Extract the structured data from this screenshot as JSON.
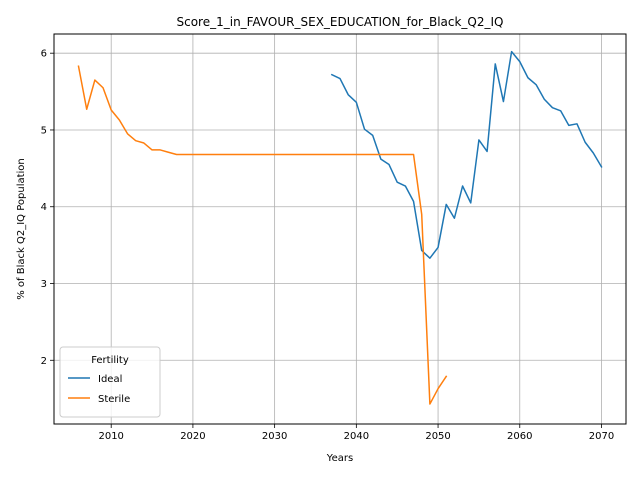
{
  "chart_data": {
    "type": "line",
    "title": "Score_1_in_FAVOUR_SEX_EDUCATION_for_Black_Q2_IQ",
    "xlabel": "Years",
    "ylabel": "% of Black Q2_IQ Population",
    "xlim": [
      2003,
      2073
    ],
    "ylim": [
      1.17,
      6.25
    ],
    "xticks": [
      2010,
      2020,
      2030,
      2040,
      2050,
      2060,
      2070
    ],
    "yticks": [
      2,
      3,
      4,
      5,
      6
    ],
    "grid": true,
    "legend": {
      "title": "Fertility",
      "placement": "lower-left"
    },
    "series": [
      {
        "name": "Ideal",
        "color": "#1f77b4",
        "x": [
          2037,
          2038,
          2039,
          2040,
          2041,
          2042,
          2043,
          2044,
          2045,
          2046,
          2047,
          2048,
          2049,
          2050,
          2051,
          2052,
          2053,
          2054,
          2055,
          2056,
          2057,
          2058,
          2059,
          2060,
          2061,
          2062,
          2063,
          2064,
          2065,
          2066,
          2067,
          2068,
          2069,
          2070
        ],
        "y": [
          5.72,
          5.67,
          5.46,
          5.36,
          5.01,
          4.93,
          4.62,
          4.55,
          4.32,
          4.27,
          4.07,
          3.43,
          3.33,
          3.47,
          4.03,
          3.85,
          4.27,
          4.05,
          4.87,
          4.72,
          5.86,
          5.37,
          6.02,
          5.89,
          5.68,
          5.59,
          5.4,
          5.29,
          5.25,
          5.06,
          5.08,
          4.84,
          4.7,
          4.52
        ]
      },
      {
        "name": "Sterile",
        "color": "#ff7f0e",
        "x": [
          2006,
          2007,
          2008,
          2009,
          2010,
          2011,
          2012,
          2013,
          2014,
          2015,
          2016,
          2017,
          2018,
          2019,
          2020,
          2025,
          2030,
          2035,
          2040,
          2045,
          2046,
          2047,
          2048,
          2049,
          2050,
          2051
        ],
        "y": [
          5.83,
          5.27,
          5.65,
          5.55,
          5.26,
          5.13,
          4.95,
          4.86,
          4.83,
          4.74,
          4.74,
          4.71,
          4.68,
          4.68,
          4.68,
          4.68,
          4.68,
          4.68,
          4.68,
          4.68,
          4.68,
          4.68,
          3.9,
          1.43,
          1.63,
          1.79
        ]
      }
    ]
  }
}
